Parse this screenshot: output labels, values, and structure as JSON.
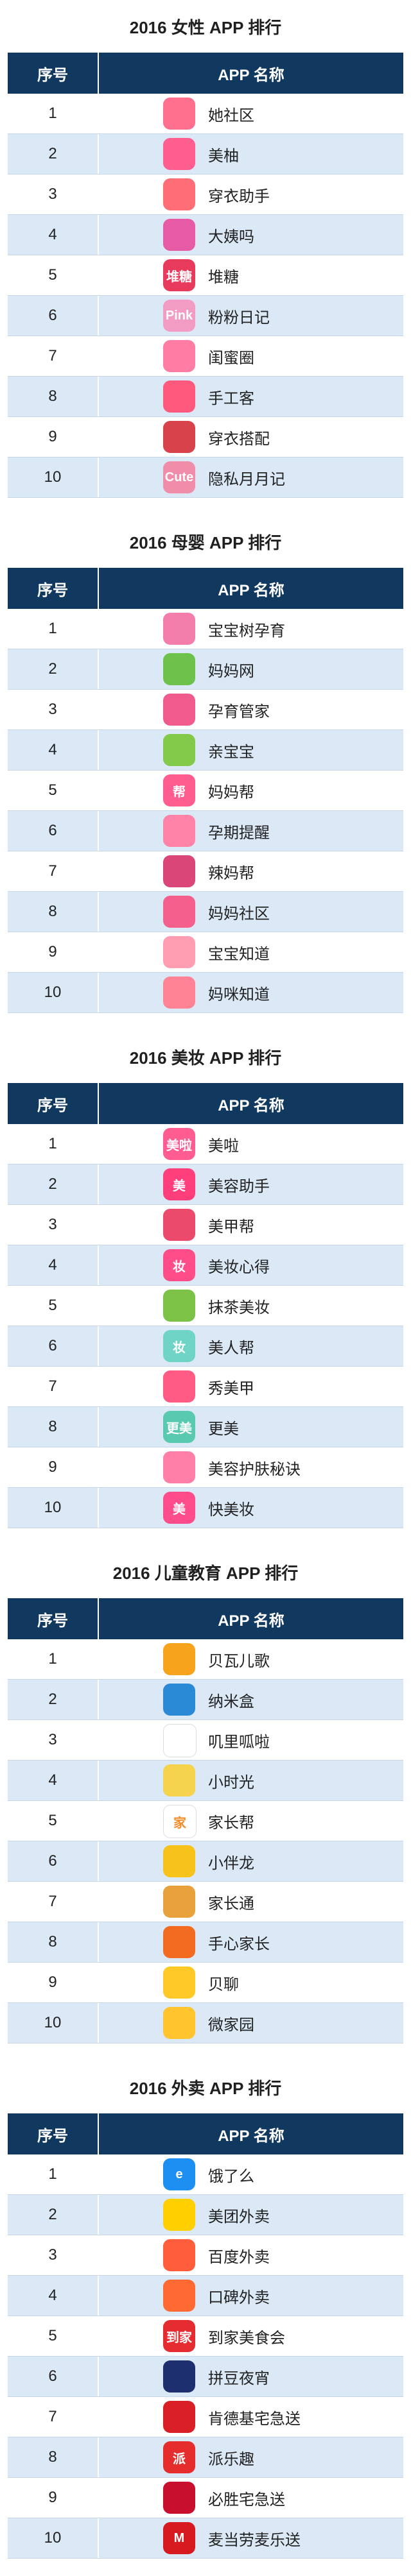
{
  "header": {
    "col_rank": "序号",
    "col_name": "APP 名称"
  },
  "sections": [
    {
      "title": "2016 女性 APP 排行",
      "rows": [
        {
          "rank": "1",
          "name": "她社区",
          "icon": "face-icon",
          "color": "#ff6f8e"
        },
        {
          "rank": "2",
          "name": "美柚",
          "icon": "flower-icon",
          "color": "#ff5e8f"
        },
        {
          "rank": "3",
          "name": "穿衣助手",
          "icon": "dress-icon",
          "color": "#ff6d77"
        },
        {
          "rank": "4",
          "name": "大姨吗",
          "icon": "calendar-icon",
          "color": "#e65aa6"
        },
        {
          "rank": "5",
          "name": "堆糖",
          "icon": "candy-icon",
          "color": "#e83a5b",
          "glyph": "堆糖"
        },
        {
          "rank": "6",
          "name": "粉粉日记",
          "icon": "diary-icon",
          "color": "#f29cc3",
          "glyph": "Pink"
        },
        {
          "rank": "7",
          "name": "闺蜜圈",
          "icon": "friends-icon",
          "color": "#ff7ca4"
        },
        {
          "rank": "8",
          "name": "手工客",
          "icon": "craft-icon",
          "color": "#ff5a7d"
        },
        {
          "rank": "9",
          "name": "穿衣搭配",
          "icon": "hat-icon",
          "color": "#d8424b"
        },
        {
          "rank": "10",
          "name": "隐私月月记",
          "icon": "cute-icon",
          "color": "#f08da8",
          "glyph": "Cute"
        }
      ]
    },
    {
      "title": "2016 母婴 APP 排行",
      "rows": [
        {
          "rank": "1",
          "name": "宝宝树孕育",
          "icon": "baby-tree-icon",
          "color": "#f37eaa"
        },
        {
          "rank": "2",
          "name": "妈妈网",
          "icon": "leaf-icon",
          "color": "#6cc24a"
        },
        {
          "rank": "3",
          "name": "孕育管家",
          "icon": "pregnant-icon",
          "color": "#f05a8c"
        },
        {
          "rank": "4",
          "name": "亲宝宝",
          "icon": "sprout-icon",
          "color": "#83c94a"
        },
        {
          "rank": "5",
          "name": "妈妈帮",
          "icon": "help-icon",
          "color": "#ff5d8f",
          "glyph": "帮"
        },
        {
          "rank": "6",
          "name": "孕期提醒",
          "icon": "mom-icon",
          "color": "#ff82a7"
        },
        {
          "rank": "7",
          "name": "辣妈帮",
          "icon": "heart-icon",
          "color": "#d94677"
        },
        {
          "rank": "8",
          "name": "妈妈社区",
          "icon": "house-icon",
          "color": "#f4608b"
        },
        {
          "rank": "9",
          "name": "宝宝知道",
          "icon": "baby-icon",
          "color": "#ff9db3"
        },
        {
          "rank": "10",
          "name": "妈咪知道",
          "icon": "mommy-icon",
          "color": "#ff8395"
        }
      ]
    },
    {
      "title": "2016 美妆 APP 排行",
      "rows": [
        {
          "rank": "1",
          "name": "美啦",
          "icon": "camera-icon",
          "color": "#ff5c91",
          "glyph": "美啦"
        },
        {
          "rank": "2",
          "name": "美容助手",
          "icon": "beauty-icon",
          "color": "#ff3e7c",
          "glyph": "美"
        },
        {
          "rank": "3",
          "name": "美甲帮",
          "icon": "nail-icon",
          "color": "#ec4a6d"
        },
        {
          "rank": "4",
          "name": "美妆心得",
          "icon": "makeup-icon",
          "color": "#ff4d89",
          "glyph": "妆"
        },
        {
          "rank": "5",
          "name": "抹茶美妆",
          "icon": "matcha-icon",
          "color": "#7cc246"
        },
        {
          "rank": "6",
          "name": "美人帮",
          "icon": "beauty-help-icon",
          "color": "#6fd4c6",
          "glyph": "妆"
        },
        {
          "rank": "7",
          "name": "秀美甲",
          "icon": "manicure-icon",
          "color": "#ff5b84"
        },
        {
          "rank": "8",
          "name": "更美",
          "icon": "gengmei-icon",
          "color": "#59c9b0",
          "glyph": "更美"
        },
        {
          "rank": "9",
          "name": "美容护肤秘诀",
          "icon": "skincare-icon",
          "color": "#ff7fa8"
        },
        {
          "rank": "10",
          "name": "快美妆",
          "icon": "quick-makeup-icon",
          "color": "#ff4d8b",
          "glyph": "美"
        }
      ]
    },
    {
      "title": "2016 儿童教育 APP 排行",
      "rows": [
        {
          "rank": "1",
          "name": "贝瓦儿歌",
          "icon": "bear-icon",
          "color": "#f7a31c"
        },
        {
          "rank": "2",
          "name": "纳米盒",
          "icon": "nano-icon",
          "color": "#2a8ad6"
        },
        {
          "rank": "3",
          "name": "叽里呱啦",
          "icon": "frog-icon",
          "color": "#ffffff"
        },
        {
          "rank": "4",
          "name": "小时光",
          "icon": "rabbit-icon",
          "color": "#f6d34c"
        },
        {
          "rank": "5",
          "name": "家长帮",
          "icon": "parent-icon",
          "color": "#ffffff",
          "glyph": "家"
        },
        {
          "rank": "6",
          "name": "小伴龙",
          "icon": "dragon-icon",
          "color": "#f7c21a"
        },
        {
          "rank": "7",
          "name": "家长通",
          "icon": "tv-icon",
          "color": "#e9a23b"
        },
        {
          "rank": "8",
          "name": "手心家长",
          "icon": "palm-icon",
          "color": "#f26b21"
        },
        {
          "rank": "9",
          "name": "贝聊",
          "icon": "chat-icon",
          "color": "#ffc928"
        },
        {
          "rank": "10",
          "name": "微家园",
          "icon": "smile-icon",
          "color": "#ffc42e"
        }
      ]
    },
    {
      "title": "2016 外卖 APP 排行",
      "rows": [
        {
          "rank": "1",
          "name": "饿了么",
          "icon": "eleme-icon",
          "color": "#1e8ff2",
          "glyph": "e"
        },
        {
          "rank": "2",
          "name": "美团外卖",
          "icon": "kangaroo-icon",
          "color": "#ffcf00"
        },
        {
          "rank": "3",
          "name": "百度外卖",
          "icon": "baidu-icon",
          "color": "#ff5d3c"
        },
        {
          "rank": "4",
          "name": "口碑外卖",
          "icon": "koubei-icon",
          "color": "#ff6a33"
        },
        {
          "rank": "5",
          "name": "到家美食会",
          "icon": "daojia-icon",
          "color": "#e52c30",
          "glyph": "到家"
        },
        {
          "rank": "6",
          "name": "拼豆夜宵",
          "icon": "night-icon",
          "color": "#1e2f6f"
        },
        {
          "rank": "7",
          "name": "肯德基宅急送",
          "icon": "kfc-icon",
          "color": "#d81f26"
        },
        {
          "rank": "8",
          "name": "派乐趣",
          "icon": "pailequ-icon",
          "color": "#e52d2d",
          "glyph": "派"
        },
        {
          "rank": "9",
          "name": "必胜宅急送",
          "icon": "pizzahut-icon",
          "color": "#c8102e"
        },
        {
          "rank": "10",
          "name": "麦当劳麦乐送",
          "icon": "mcdonalds-icon",
          "color": "#d71920",
          "glyph": "M"
        }
      ]
    }
  ]
}
